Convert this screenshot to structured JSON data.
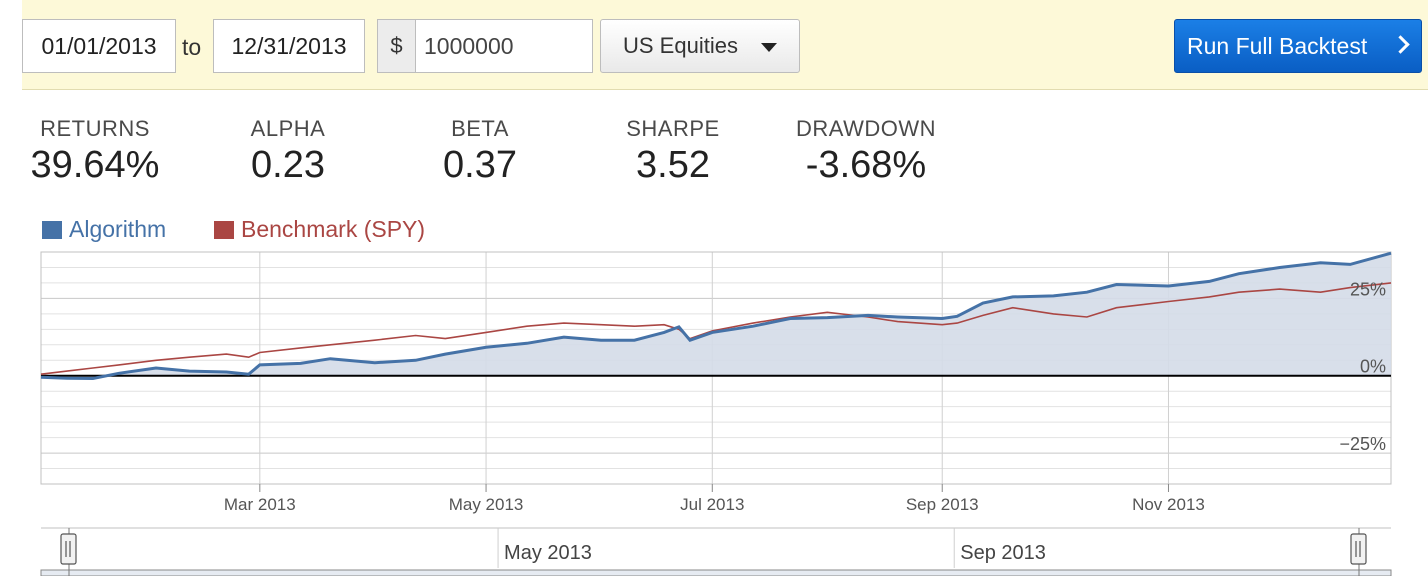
{
  "toolbar": {
    "start_date": "01/01/2013",
    "to_label": "to",
    "end_date": "12/31/2013",
    "currency_symbol": "$",
    "capital": "1000000",
    "universe": "US Equities",
    "run_button": "Run Full Backtest"
  },
  "stats": [
    {
      "label": "RETURNS",
      "value": "39.64%"
    },
    {
      "label": "ALPHA",
      "value": "0.23"
    },
    {
      "label": "BETA",
      "value": "0.37"
    },
    {
      "label": "SHARPE",
      "value": "3.52"
    },
    {
      "label": "DRAWDOWN",
      "value": "-3.68%"
    }
  ],
  "colors": {
    "algorithm": "#4572a7",
    "benchmark": "#aa4643",
    "fill": "#d4dce8",
    "button": "#0a64d0"
  },
  "chart_data": {
    "type": "line",
    "xlabel": "",
    "ylabel": "",
    "x_range": [
      "2013-01-01",
      "2013-12-31"
    ],
    "ylim": [
      -35,
      40
    ],
    "y_ticks": [
      {
        "value": 25,
        "label": "25%"
      },
      {
        "value": 0,
        "label": "0%"
      },
      {
        "value": -25,
        "label": "−25%"
      }
    ],
    "x_ticks": [
      {
        "date": "2013-03-01",
        "label": "Mar 2013"
      },
      {
        "date": "2013-05-01",
        "label": "May 2013"
      },
      {
        "date": "2013-07-01",
        "label": "Jul 2013"
      },
      {
        "date": "2013-09-01",
        "label": "Sep 2013"
      },
      {
        "date": "2013-11-01",
        "label": "Nov 2013"
      }
    ],
    "legend_position": "top-left",
    "grid": true,
    "series": [
      {
        "name": "Algorithm",
        "points": [
          [
            "2013-01-01",
            -0.5
          ],
          [
            "2013-01-08",
            -0.8
          ],
          [
            "2013-01-15",
            -0.9
          ],
          [
            "2013-01-22",
            0.8
          ],
          [
            "2013-02-01",
            2.5
          ],
          [
            "2013-02-10",
            1.5
          ],
          [
            "2013-02-20",
            1.2
          ],
          [
            "2013-02-26",
            0.5
          ],
          [
            "2013-03-01",
            3.5
          ],
          [
            "2013-03-12",
            4.0
          ],
          [
            "2013-03-20",
            5.5
          ],
          [
            "2013-04-01",
            4.2
          ],
          [
            "2013-04-12",
            5.0
          ],
          [
            "2013-04-20",
            7.0
          ],
          [
            "2013-05-01",
            9.2
          ],
          [
            "2013-05-12",
            10.5
          ],
          [
            "2013-05-22",
            12.5
          ],
          [
            "2013-06-01",
            11.5
          ],
          [
            "2013-06-10",
            11.5
          ],
          [
            "2013-06-18",
            14.0
          ],
          [
            "2013-06-22",
            15.8
          ],
          [
            "2013-06-25",
            11.5
          ],
          [
            "2013-07-01",
            14.0
          ],
          [
            "2013-07-12",
            16.0
          ],
          [
            "2013-07-22",
            18.5
          ],
          [
            "2013-08-01",
            18.8
          ],
          [
            "2013-08-12",
            19.5
          ],
          [
            "2013-08-20",
            19.0
          ],
          [
            "2013-09-01",
            18.5
          ],
          [
            "2013-09-05",
            19.2
          ],
          [
            "2013-09-12",
            23.5
          ],
          [
            "2013-09-20",
            25.5
          ],
          [
            "2013-10-01",
            25.8
          ],
          [
            "2013-10-10",
            27.0
          ],
          [
            "2013-10-18",
            29.5
          ],
          [
            "2013-11-01",
            29.0
          ],
          [
            "2013-11-12",
            30.5
          ],
          [
            "2013-11-20",
            33.0
          ],
          [
            "2013-12-01",
            35.0
          ],
          [
            "2013-12-12",
            36.5
          ],
          [
            "2013-12-20",
            36.0
          ],
          [
            "2013-12-31",
            39.6
          ]
        ]
      },
      {
        "name": "Benchmark (SPY)",
        "points": [
          [
            "2013-01-01",
            0.5
          ],
          [
            "2013-01-08",
            1.5
          ],
          [
            "2013-01-15",
            2.5
          ],
          [
            "2013-01-22",
            3.5
          ],
          [
            "2013-02-01",
            5.0
          ],
          [
            "2013-02-10",
            6.0
          ],
          [
            "2013-02-20",
            7.0
          ],
          [
            "2013-02-26",
            6.0
          ],
          [
            "2013-03-01",
            7.5
          ],
          [
            "2013-03-12",
            9.0
          ],
          [
            "2013-03-20",
            10.0
          ],
          [
            "2013-04-01",
            11.5
          ],
          [
            "2013-04-12",
            13.0
          ],
          [
            "2013-04-20",
            12.0
          ],
          [
            "2013-05-01",
            14.0
          ],
          [
            "2013-05-12",
            16.0
          ],
          [
            "2013-05-22",
            17.0
          ],
          [
            "2013-06-01",
            16.5
          ],
          [
            "2013-06-10",
            16.0
          ],
          [
            "2013-06-18",
            16.5
          ],
          [
            "2013-06-22",
            15.0
          ],
          [
            "2013-06-25",
            12.0
          ],
          [
            "2013-07-01",
            14.5
          ],
          [
            "2013-07-12",
            17.0
          ],
          [
            "2013-07-22",
            19.0
          ],
          [
            "2013-08-01",
            20.5
          ],
          [
            "2013-08-12",
            19.0
          ],
          [
            "2013-08-20",
            17.5
          ],
          [
            "2013-09-01",
            16.5
          ],
          [
            "2013-09-05",
            17.0
          ],
          [
            "2013-09-12",
            19.5
          ],
          [
            "2013-09-20",
            22.0
          ],
          [
            "2013-10-01",
            20.0
          ],
          [
            "2013-10-10",
            19.0
          ],
          [
            "2013-10-18",
            22.0
          ],
          [
            "2013-11-01",
            24.0
          ],
          [
            "2013-11-12",
            25.5
          ],
          [
            "2013-11-20",
            27.0
          ],
          [
            "2013-12-01",
            28.0
          ],
          [
            "2013-12-12",
            27.0
          ],
          [
            "2013-12-20",
            28.5
          ],
          [
            "2013-12-31",
            30.0
          ]
        ]
      }
    ]
  },
  "navigator": {
    "labels": [
      {
        "date": "2013-05-01",
        "label": "May 2013"
      },
      {
        "date": "2013-09-01",
        "label": "Sep 2013"
      }
    ]
  }
}
